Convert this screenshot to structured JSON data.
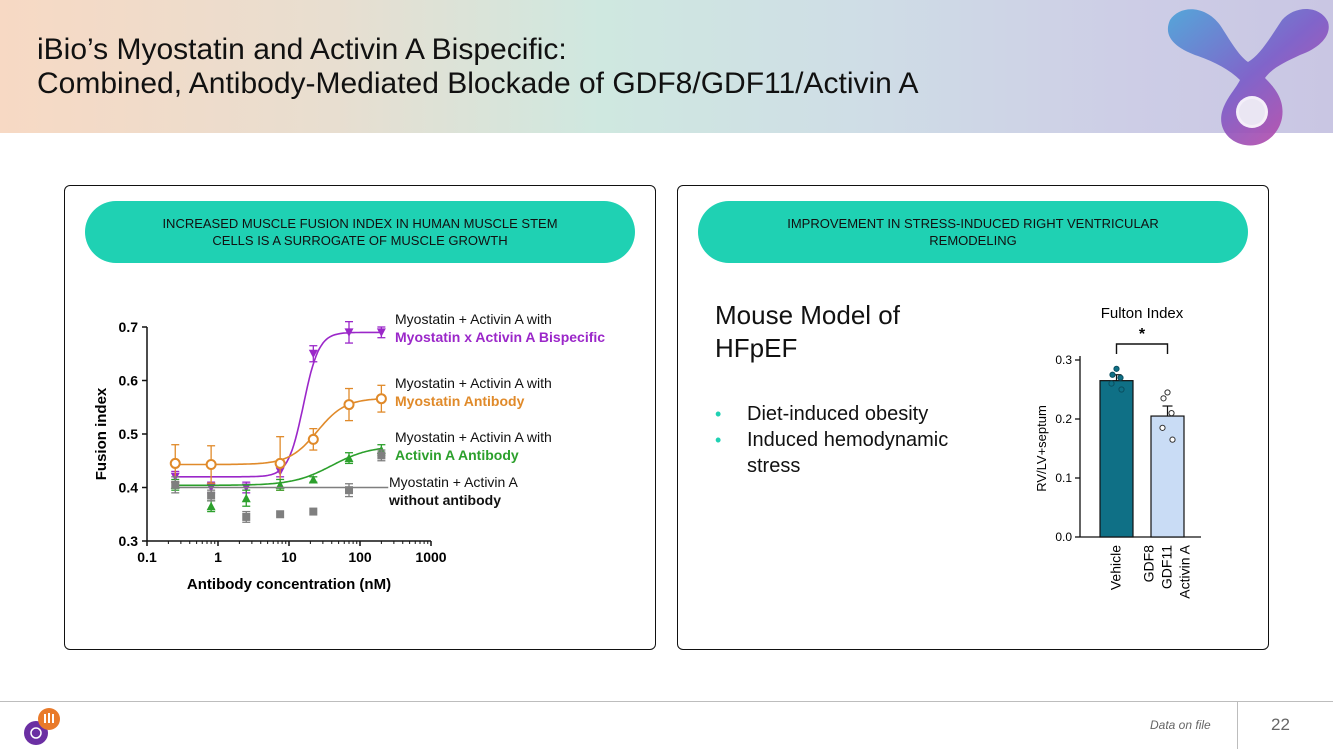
{
  "header": {
    "title_line1": "iBio’s Myostatin and Activin A Bispecific:",
    "title_line2": "Combined, Antibody-Mediated Blockade of GDF8/GDF11/Activin A"
  },
  "left_panel": {
    "pill_text": "INCREASED MUSCLE FUSION INDEX IN HUMAN MUSCLE STEM CELLS IS A SURROGATE OF MUSCLE GROWTH"
  },
  "right_panel": {
    "pill_text": "IMPROVEMENT IN STRESS-INDUCED RIGHT VENTRICULAR REMODELING",
    "mouse_title_line1": "Mouse Model of",
    "mouse_title_line2": "HFpEF",
    "bullets": [
      "Diet-induced obesity",
      "Induced hemodynamic stress"
    ]
  },
  "footer": {
    "data_on_file": "Data on file",
    "page_number": "22"
  },
  "colors": {
    "teal_pill": "#1fd1b3",
    "bispecific": "#9b27c9",
    "myostatin_ab": "#e08a2a",
    "activin_ab": "#2ca02c",
    "no_antibody": "#7f7f7f",
    "vehicle_bar": "#0f7086",
    "treatment_bar": "#c9dcf5"
  },
  "chart_data": [
    {
      "type": "scatter",
      "xlabel": "Antibody concentration (nM)",
      "ylabel": "Fusion index",
      "x_scale": "log",
      "xlim": [
        0.1,
        1000
      ],
      "ylim": [
        0.3,
        0.7
      ],
      "x_ticks": [
        "0.1",
        "1",
        "10",
        "100",
        "1000"
      ],
      "y_ticks": [
        "0.3",
        "0.4",
        "0.5",
        "0.6",
        "0.7"
      ],
      "grid": false,
      "series": [
        {
          "key": "bispecific",
          "name_line1": "Myostatin + Activin A with",
          "name_line2": "Myostatin x Activin A Bispecific",
          "marker": "triangle-down",
          "x": [
            0.25,
            0.8,
            2.5,
            7.5,
            22,
            70,
            200
          ],
          "y": [
            0.42,
            0.4,
            0.4,
            0.43,
            0.65,
            0.69,
            0.69
          ],
          "err": [
            0.01,
            0.01,
            0.01,
            0.01,
            0.015,
            0.02,
            0.01
          ],
          "fit": {
            "bottom": 0.42,
            "top": 0.69,
            "ec50": 16,
            "hill": 4
          }
        },
        {
          "key": "myostatin_ab",
          "name_line1": "Myostatin + Activin A with",
          "name_line2": "Myostatin Antibody",
          "marker": "circle-open",
          "x": [
            0.25,
            0.8,
            7.5,
            22,
            70,
            200
          ],
          "y": [
            0.445,
            0.443,
            0.445,
            0.49,
            0.555,
            0.566
          ],
          "err": [
            0.035,
            0.035,
            0.05,
            0.02,
            0.03,
            0.025
          ],
          "fit": {
            "bottom": 0.443,
            "top": 0.567,
            "ec50": 25,
            "hill": 2.2
          }
        },
        {
          "key": "activin_ab",
          "name_line1": "Myostatin + Activin A with",
          "name_line2": "Activin A Antibody",
          "marker": "triangle-up",
          "x": [
            0.25,
            0.8,
            2.5,
            7.5,
            22,
            70,
            200
          ],
          "y": [
            0.405,
            0.365,
            0.38,
            0.405,
            0.415,
            0.455,
            0.47
          ],
          "err": [
            0.01,
            0.01,
            0.015,
            0.01,
            0.005,
            0.01,
            0.01
          ],
          "fit": {
            "bottom": 0.404,
            "top": 0.478,
            "ec50": 40,
            "hill": 1.6
          }
        },
        {
          "key": "no_antibody",
          "name_line1": "Myostatin + Activin A",
          "name_line2": "without antibody",
          "marker": "square",
          "x": [
            0.25,
            0.8,
            2.5,
            7.5,
            22,
            70,
            200
          ],
          "y": [
            0.405,
            0.385,
            0.345,
            0.35,
            0.355,
            0.395,
            0.46
          ],
          "err": [
            0.015,
            0.01,
            0.01,
            0.0,
            0.0,
            0.012,
            0.01
          ],
          "fit_line": 0.4
        }
      ]
    },
    {
      "type": "bar",
      "title": "Fulton Index",
      "ylabel": "RV/LV+septum",
      "ylim": [
        0.0,
        0.3
      ],
      "y_ticks": [
        "0.0",
        "0.1",
        "0.2",
        "0.3"
      ],
      "categories": [
        {
          "label_lines": [
            "Vehicle"
          ]
        },
        {
          "label_lines": [
            "GDF8",
            "GDF11",
            "Activin A"
          ]
        }
      ],
      "values": [
        0.265,
        0.205
      ],
      "sem": [
        0.01,
        0.017
      ],
      "points": [
        [
          0.285,
          0.275,
          0.27,
          0.26,
          0.25
        ],
        [
          0.245,
          0.235,
          0.21,
          0.185,
          0.165
        ]
      ],
      "significance": "*"
    }
  ]
}
